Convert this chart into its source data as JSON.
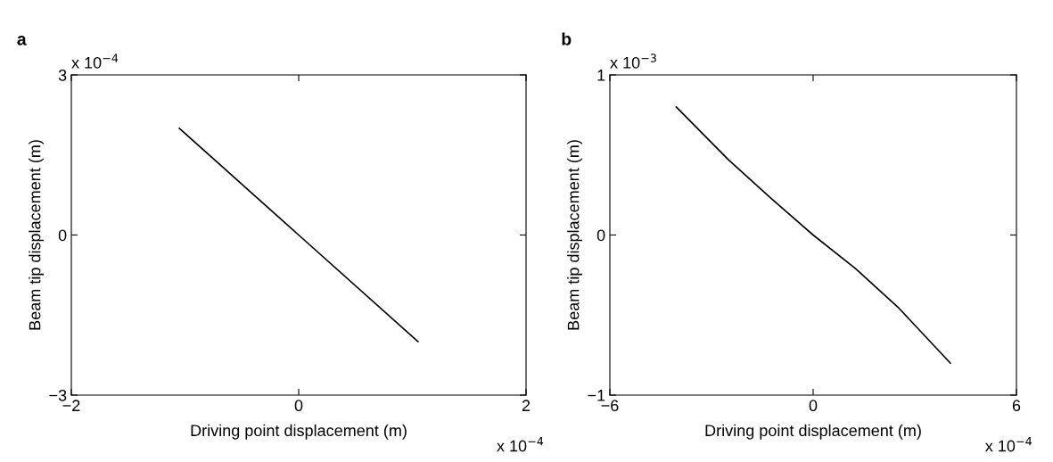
{
  "chart_data": [
    {
      "type": "line",
      "title": "a",
      "xlabel": "Driving point displacement (m)",
      "ylabel": "Beam tip displacement (m)",
      "annotations": [
        "x 10$^{−4}$",
        "x 10$^{−4}$"
      ],
      "x": [
        -1.05,
        0,
        1.05
      ],
      "series": [
        {
          "color": "#000000",
          "values": [
            2.0,
            0.0,
            -2.0
          ]
        }
      ],
      "xlim": [
        -2,
        2
      ],
      "xticks": [
        {
          "value": -2,
          "label": "−2"
        },
        0,
        2
      ],
      "ylim": [
        -3,
        3
      ],
      "yticks": [
        {
          "value": -3,
          "label": "−3"
        },
        0,
        3
      ],
      "grid": false,
      "legend": false
    },
    {
      "type": "line",
      "title": "b",
      "xlabel": "Driving point displacement (m)",
      "ylabel": "Beam tip displacement (m)",
      "annotations": [
        "x 10$^{−3}$",
        "x 10$^{−4}$"
      ],
      "x": [
        -4.04,
        -2.5,
        -1.25,
        0,
        1.25,
        2.5,
        4.05
      ],
      "series": [
        {
          "color": "#000000",
          "values": [
            0.8,
            0.47,
            0.23,
            0.0,
            -0.21,
            -0.45,
            -0.8
          ]
        }
      ],
      "xlim": [
        -6,
        6
      ],
      "xticks": [
        {
          "value": -6,
          "label": "−6"
        },
        0,
        6
      ],
      "ylim": [
        -1,
        1
      ],
      "yticks": [
        {
          "value": -1,
          "label": "−1"
        },
        0,
        1
      ],
      "grid": false,
      "legend": false
    }
  ]
}
